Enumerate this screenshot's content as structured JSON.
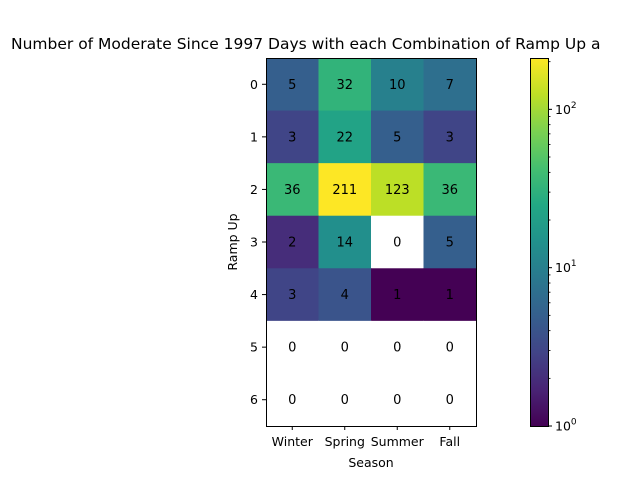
{
  "chart_data": {
    "type": "heatmap",
    "title": "Number of Moderate Since 1997 Days with each Combination of Ramp Up a",
    "xlabel": "Season",
    "ylabel": "Ramp Up",
    "x_categories": [
      "Winter",
      "Spring",
      "Summer",
      "Fall"
    ],
    "y_categories": [
      "0",
      "1",
      "2",
      "3",
      "4",
      "5",
      "6"
    ],
    "values": [
      [
        5,
        32,
        10,
        7
      ],
      [
        3,
        22,
        5,
        3
      ],
      [
        36,
        211,
        123,
        36
      ],
      [
        2,
        14,
        0,
        5
      ],
      [
        3,
        4,
        1,
        1
      ],
      [
        0,
        0,
        0,
        0
      ],
      [
        0,
        0,
        0,
        0
      ]
    ],
    "color_scale": "log",
    "colormap": "viridis",
    "vmin": 1,
    "vmax": 211,
    "colorbar": {
      "ticks": [
        {
          "base": "10",
          "exp": "0",
          "value": 1
        },
        {
          "base": "10",
          "exp": "1",
          "value": 10
        },
        {
          "base": "10",
          "exp": "2",
          "value": 100
        }
      ]
    },
    "zero_color": "#ffffff"
  }
}
